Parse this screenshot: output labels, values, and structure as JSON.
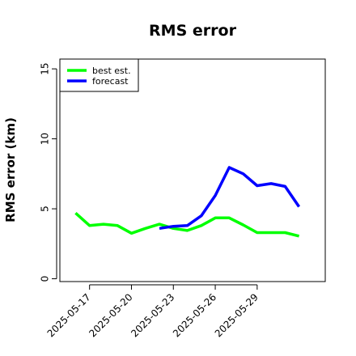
{
  "chart_data": {
    "type": "line",
    "title": "RMS error",
    "xlabel": "",
    "ylabel": "RMS error (km)",
    "ylim": [
      -0.2,
      15.7
    ],
    "yticks": [
      0,
      5,
      10,
      15
    ],
    "xticks": [
      "2025-05-17",
      "2025-05-20",
      "2025-05-23",
      "2025-05-26",
      "2025-05-29"
    ],
    "xlim": [
      "2025-05-14T21:00",
      "2025-06-02T21:00"
    ],
    "grid": false,
    "legend": {
      "position": "top-left"
    },
    "series": [
      {
        "name": "best est.",
        "color": "#00ff00",
        "x": [
          "2025-05-16T00:00",
          "2025-05-17T00:00",
          "2025-05-18T00:00",
          "2025-05-19T00:00",
          "2025-05-20T00:00",
          "2025-05-21T00:00",
          "2025-05-22T00:00",
          "2025-05-23T00:00",
          "2025-05-24T00:00",
          "2025-05-25T00:00",
          "2025-05-26T00:00",
          "2025-05-27T00:00",
          "2025-05-28T00:00",
          "2025-05-29T00:00",
          "2025-05-30T00:00",
          "2025-05-31T00:00",
          "2025-06-01T00:00"
        ],
        "values": [
          4.7,
          3.8,
          3.9,
          3.8,
          3.25,
          3.6,
          3.9,
          3.6,
          3.45,
          3.8,
          4.35,
          4.35,
          3.85,
          3.3,
          3.3,
          3.3,
          3.05
        ]
      },
      {
        "name": "forecast",
        "color": "#0000ff",
        "x": [
          "2025-05-22T00:00",
          "2025-05-23T00:00",
          "2025-05-24T00:00",
          "2025-05-25T00:00",
          "2025-05-26T00:00",
          "2025-05-27T00:00",
          "2025-05-28T00:00",
          "2025-05-29T00:00",
          "2025-05-30T00:00",
          "2025-05-31T00:00",
          "2025-06-01T00:00"
        ],
        "values": [
          3.6,
          3.75,
          3.8,
          4.5,
          5.95,
          7.95,
          7.5,
          6.65,
          6.8,
          6.6,
          5.15
        ]
      }
    ]
  }
}
